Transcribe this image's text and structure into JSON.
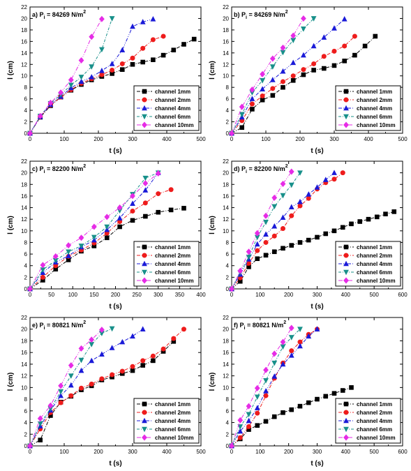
{
  "legend_labels": [
    "channel 1mm",
    "channel 2mm",
    "channel 4mm",
    "channel 6mm",
    "channel 10mm"
  ],
  "series_colors": [
    "#000000",
    "#ee1c1c",
    "#1a1ad8",
    "#18908a",
    "#e62be6"
  ],
  "series_markers": [
    "square",
    "circle",
    "triangle-up",
    "triangle-down",
    "diamond"
  ],
  "y_ticks": [
    0,
    2,
    4,
    6,
    8,
    10,
    12,
    14,
    16,
    18,
    20,
    22
  ],
  "chart_data": [
    {
      "type": "line",
      "title": "a) P",
      "title_sub": "i",
      "title_value": " = 84269 N/m",
      "title_sup": "2",
      "xlabel": "t (s)",
      "ylabel": "l (cm)",
      "xlim": [
        0,
        500
      ],
      "ylim": [
        0,
        22
      ],
      "x_ticks": [
        0,
        100,
        200,
        300,
        400,
        500
      ],
      "legend_position": "bottom-right",
      "series": [
        {
          "name": "channel 1mm",
          "x": [
            0,
            30,
            60,
            90,
            120,
            150,
            180,
            210,
            240,
            270,
            300,
            330,
            360,
            390,
            420,
            450,
            480
          ],
          "y": [
            0,
            2.8,
            4.8,
            6.3,
            7.5,
            8.5,
            9.3,
            9.9,
            10.4,
            11.1,
            12.0,
            12.4,
            12.8,
            13.6,
            14.5,
            15.5,
            16.4
          ]
        },
        {
          "name": "channel 2mm",
          "x": [
            0,
            30,
            60,
            90,
            120,
            150,
            180,
            210,
            240,
            270,
            300,
            330,
            360,
            390
          ],
          "y": [
            0,
            2.9,
            4.9,
            6.3,
            7.6,
            8.7,
            9.5,
            10.2,
            11.0,
            12.1,
            13.1,
            14.8,
            16.3,
            16.9
          ]
        },
        {
          "name": "channel 4mm",
          "x": [
            0,
            30,
            60,
            90,
            120,
            150,
            180,
            210,
            240,
            270,
            300,
            330,
            360
          ],
          "y": [
            0,
            2.9,
            5.0,
            6.4,
            7.9,
            9.0,
            9.8,
            10.9,
            12.1,
            14.5,
            18.6,
            19.4,
            19.9
          ]
        },
        {
          "name": "channel 6mm",
          "x": [
            0,
            30,
            60,
            90,
            120,
            150,
            180,
            210,
            240
          ],
          "y": [
            0,
            3.0,
            5.2,
            6.7,
            8.4,
            9.8,
            11.6,
            14.6,
            20.0
          ]
        },
        {
          "name": "channel 10mm",
          "x": [
            0,
            30,
            60,
            90,
            120,
            150,
            180,
            210
          ],
          "y": [
            0,
            3.0,
            5.3,
            7.1,
            9.3,
            12.7,
            16.8,
            19.9
          ]
        }
      ]
    },
    {
      "type": "line",
      "title": "b) P",
      "title_sub": "i",
      "title_value": " = 84269 N/m",
      "title_sup": "2",
      "xlabel": "t (s)",
      "ylabel": "l (cm)",
      "xlim": [
        0,
        500
      ],
      "ylim": [
        0,
        22
      ],
      "x_ticks": [
        0,
        100,
        200,
        300,
        400,
        500
      ],
      "legend_position": "bottom-right",
      "series": [
        {
          "name": "channel 1mm",
          "x": [
            0,
            30,
            60,
            90,
            120,
            150,
            180,
            210,
            240,
            270,
            300,
            330,
            360,
            390,
            420
          ],
          "y": [
            0,
            1.0,
            4.2,
            5.8,
            6.6,
            8.0,
            9.2,
            10.2,
            11.0,
            11.3,
            11.8,
            12.6,
            13.6,
            15.2,
            16.9
          ]
        },
        {
          "name": "channel 2mm",
          "x": [
            0,
            30,
            60,
            90,
            120,
            150,
            180,
            210,
            240,
            270,
            300,
            330,
            360
          ],
          "y": [
            0,
            2.2,
            5.1,
            6.5,
            7.8,
            9.0,
            10.0,
            11.1,
            12.1,
            13.4,
            14.3,
            15.2,
            16.9
          ]
        },
        {
          "name": "channel 4mm",
          "x": [
            0,
            30,
            60,
            90,
            120,
            150,
            180,
            210,
            240,
            270,
            300,
            330
          ],
          "y": [
            0,
            2.8,
            6.0,
            7.7,
            9.3,
            10.8,
            12.3,
            13.6,
            15.2,
            16.7,
            18.3,
            19.9
          ]
        },
        {
          "name": "channel 6mm",
          "x": [
            0,
            30,
            60,
            90,
            120,
            150,
            180,
            210,
            240
          ],
          "y": [
            0,
            3.3,
            7.1,
            9.2,
            11.6,
            14.1,
            16.2,
            18.2,
            20.0
          ]
        },
        {
          "name": "channel 10mm",
          "x": [
            0,
            30,
            60,
            90,
            120,
            150,
            180,
            210
          ],
          "y": [
            0,
            4.6,
            7.6,
            10.3,
            13.0,
            14.9,
            17.0,
            20.0
          ]
        }
      ]
    },
    {
      "type": "line",
      "title": "c) P",
      "title_sub": "i",
      "title_value": " = 82200 N/m",
      "title_sup": "2",
      "xlabel": "t (s)",
      "ylabel": "l (cm)",
      "xlim": [
        0,
        400
      ],
      "ylim": [
        0,
        22
      ],
      "x_ticks": [
        0,
        50,
        100,
        150,
        200,
        250,
        300,
        350,
        400
      ],
      "legend_position": "bottom-right",
      "series": [
        {
          "name": "channel 1mm",
          "x": [
            0,
            30,
            60,
            90,
            120,
            150,
            180,
            210,
            240,
            270,
            300,
            330,
            360
          ],
          "y": [
            0,
            1.5,
            3.4,
            5.0,
            6.5,
            7.4,
            8.8,
            10.7,
            11.8,
            12.5,
            13.2,
            13.6,
            13.9
          ]
        },
        {
          "name": "channel 2mm",
          "x": [
            0,
            30,
            60,
            90,
            120,
            150,
            180,
            210,
            240,
            270,
            300,
            330
          ],
          "y": [
            0,
            2.0,
            4.0,
            5.6,
            6.7,
            7.9,
            9.6,
            11.6,
            13.4,
            14.8,
            16.4,
            17.1
          ]
        },
        {
          "name": "channel 4mm",
          "x": [
            0,
            30,
            60,
            90,
            120,
            150,
            180,
            210,
            240,
            270,
            300
          ],
          "y": [
            0,
            2.8,
            4.6,
            5.7,
            7.2,
            8.4,
            10.2,
            12.2,
            14.7,
            17.0,
            20.0
          ]
        },
        {
          "name": "channel 6mm",
          "x": [
            0,
            30,
            60,
            90,
            120,
            150,
            180,
            210,
            240,
            270,
            300
          ],
          "y": [
            0,
            3.3,
            4.9,
            6.4,
            7.4,
            8.9,
            10.7,
            13.5,
            16.3,
            19.1,
            20.0
          ]
        },
        {
          "name": "channel 10mm",
          "x": [
            0,
            30,
            60,
            90,
            120,
            150,
            180,
            210,
            240,
            270,
            300
          ],
          "y": [
            0,
            4.1,
            5.6,
            7.5,
            8.8,
            10.7,
            12.4,
            14.0,
            16.0,
            18.2,
            19.9
          ]
        }
      ]
    },
    {
      "type": "line",
      "title": "d) P",
      "title_sub": "i",
      "title_value": " = 82200 N/m",
      "title_sup": "2",
      "xlabel": "t (s)",
      "ylabel": "l (cm)",
      "xlim": [
        0,
        600
      ],
      "ylim": [
        0,
        22
      ],
      "x_ticks": [
        0,
        100,
        200,
        300,
        400,
        500,
        600
      ],
      "legend_position": "bottom-right",
      "series": [
        {
          "name": "channel 1mm",
          "x": [
            0,
            30,
            60,
            90,
            120,
            150,
            180,
            210,
            240,
            270,
            300,
            330,
            360,
            390,
            420,
            450,
            480,
            510,
            540,
            570
          ],
          "y": [
            0,
            1.3,
            3.8,
            5.2,
            5.8,
            6.4,
            7.0,
            7.5,
            8.0,
            8.4,
            8.9,
            9.5,
            10.0,
            10.6,
            11.2,
            11.6,
            12.0,
            12.4,
            12.9,
            13.3
          ]
        },
        {
          "name": "channel 2mm",
          "x": [
            0,
            30,
            60,
            90,
            120,
            150,
            180,
            210,
            240,
            270,
            300,
            330,
            360,
            390
          ],
          "y": [
            0,
            1.9,
            4.4,
            6.6,
            8.0,
            9.1,
            10.4,
            12.6,
            14.3,
            15.6,
            17.2,
            18.3,
            18.9,
            20.0
          ]
        },
        {
          "name": "channel 4mm",
          "x": [
            0,
            30,
            60,
            90,
            120,
            150,
            180,
            210,
            240,
            270,
            300,
            330,
            360
          ],
          "y": [
            0,
            2.5,
            5.1,
            7.7,
            9.4,
            10.8,
            12.3,
            14.1,
            15.0,
            16.3,
            17.5,
            18.8,
            20.0
          ]
        },
        {
          "name": "channel 6mm",
          "x": [
            0,
            30,
            60,
            90,
            120,
            150,
            180,
            210,
            240
          ],
          "y": [
            0,
            2.8,
            5.5,
            8.9,
            11.5,
            14.2,
            16.1,
            17.9,
            20.0
          ]
        },
        {
          "name": "channel 10mm",
          "x": [
            0,
            30,
            60,
            90,
            120,
            150,
            180,
            210
          ],
          "y": [
            0,
            3.1,
            6.4,
            9.6,
            12.6,
            15.7,
            18.1,
            20.2
          ]
        }
      ]
    },
    {
      "type": "line",
      "title": "e) P",
      "title_sub": "i",
      "title_value": " = 80821 N/m",
      "title_sup": "2",
      "xlabel": "t (s)",
      "ylabel": "l (cm)",
      "xlim": [
        0,
        500
      ],
      "ylim": [
        0,
        22
      ],
      "x_ticks": [
        0,
        100,
        200,
        300,
        400,
        500
      ],
      "legend_position": "bottom-right",
      "series": [
        {
          "name": "channel 1mm",
          "x": [
            0,
            30,
            60,
            90,
            120,
            150,
            180,
            210,
            240,
            270,
            300,
            330,
            360,
            390,
            420
          ],
          "y": [
            0,
            1.0,
            5.2,
            7.5,
            8.5,
            9.6,
            10.3,
            11.3,
            11.8,
            12.4,
            12.9,
            13.8,
            14.6,
            16.2,
            17.9
          ]
        },
        {
          "name": "channel 2mm",
          "x": [
            0,
            30,
            60,
            90,
            120,
            150,
            180,
            210,
            240,
            270,
            300,
            330,
            360,
            390,
            420,
            450
          ],
          "y": [
            0,
            2.9,
            5.7,
            7.4,
            8.6,
            9.9,
            10.6,
            11.5,
            12.2,
            12.8,
            13.6,
            14.6,
            15.4,
            16.6,
            18.4,
            20.0
          ]
        },
        {
          "name": "channel 4mm",
          "x": [
            0,
            30,
            60,
            90,
            120,
            150,
            180,
            210,
            240,
            270,
            300,
            330
          ],
          "y": [
            0,
            3.4,
            6.1,
            8.6,
            10.4,
            12.9,
            14.6,
            15.7,
            16.8,
            17.8,
            18.8,
            20.0
          ]
        },
        {
          "name": "channel 6mm",
          "x": [
            0,
            30,
            60,
            90,
            120,
            150,
            180,
            210,
            240
          ],
          "y": [
            0,
            3.8,
            6.4,
            9.3,
            12.0,
            14.7,
            17.4,
            19.3,
            20.1
          ]
        },
        {
          "name": "channel 10mm",
          "x": [
            0,
            30,
            60,
            90,
            120,
            150,
            180,
            210
          ],
          "y": [
            0,
            4.7,
            6.9,
            10.3,
            13.8,
            16.7,
            18.2,
            19.9
          ]
        }
      ]
    },
    {
      "type": "line",
      "title": "f) P",
      "title_sub": "i",
      "title_value": " = 80821 N/m",
      "title_sup": "2",
      "xlabel": "t (s)",
      "ylabel": "l (cm)",
      "xlim": [
        0,
        600
      ],
      "ylim": [
        0,
        22
      ],
      "x_ticks": [
        0,
        100,
        200,
        300,
        400,
        500,
        600
      ],
      "legend_position": "bottom-right",
      "series": [
        {
          "name": "channel 1mm",
          "x": [
            0,
            30,
            60,
            90,
            120,
            150,
            180,
            210,
            240,
            270,
            300,
            330,
            360,
            390,
            420
          ],
          "y": [
            0,
            1.2,
            2.8,
            3.5,
            4.2,
            5.0,
            5.7,
            6.2,
            6.8,
            7.4,
            8.0,
            8.5,
            9.0,
            9.5,
            10.0
          ]
        },
        {
          "name": "channel 2mm",
          "x": [
            0,
            30,
            60,
            90,
            120,
            150,
            180,
            210,
            240,
            270,
            300
          ],
          "y": [
            0,
            1.4,
            3.3,
            5.6,
            8.6,
            11.6,
            14.2,
            16.3,
            17.8,
            19.1,
            20.0
          ]
        },
        {
          "name": "channel 4mm",
          "x": [
            0,
            30,
            60,
            90,
            120,
            150,
            180,
            210,
            240,
            270,
            300
          ],
          "y": [
            0,
            2.5,
            4.3,
            6.5,
            9.4,
            11.9,
            14.0,
            15.5,
            17.1,
            18.8,
            20.0
          ]
        },
        {
          "name": "channel 6mm",
          "x": [
            0,
            30,
            60,
            90,
            120,
            150,
            180,
            210,
            240
          ],
          "y": [
            0,
            3.3,
            5.4,
            8.4,
            11.2,
            14.2,
            17.0,
            18.6,
            20.0
          ]
        },
        {
          "name": "channel 10mm",
          "x": [
            0,
            30,
            60,
            90,
            120,
            150,
            180,
            210
          ],
          "y": [
            0,
            4.4,
            6.8,
            9.9,
            13.0,
            15.8,
            17.8,
            20.2
          ]
        }
      ]
    }
  ]
}
